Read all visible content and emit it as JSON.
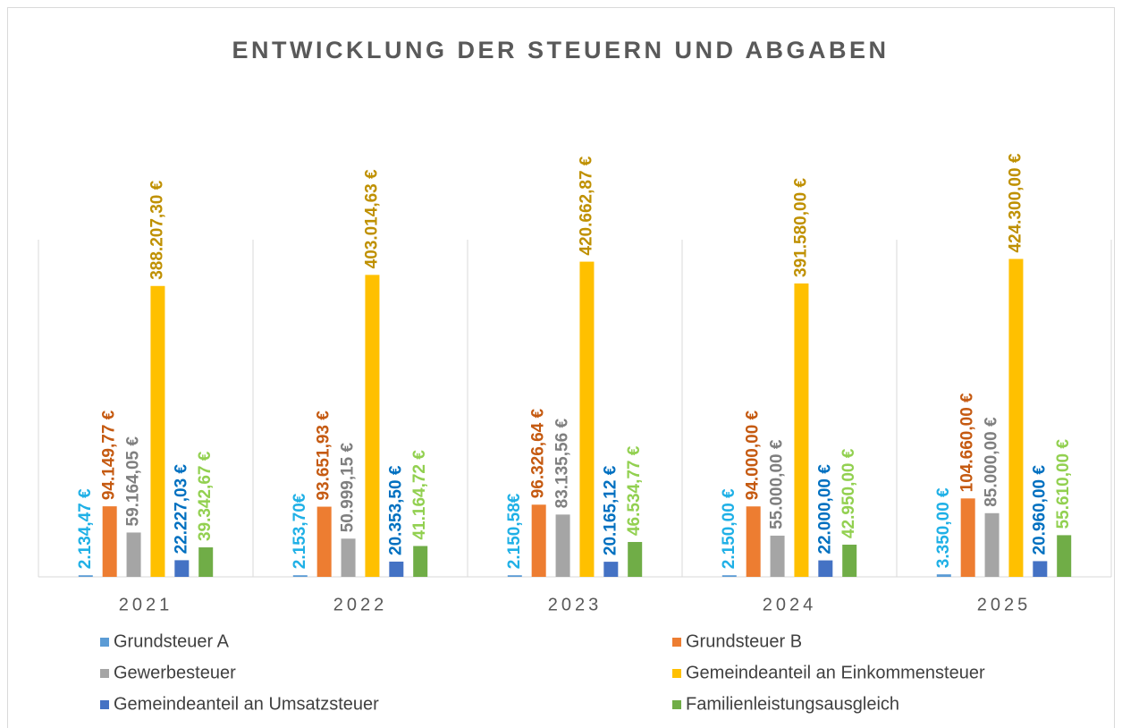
{
  "chart_data": {
    "type": "bar",
    "title": "ENTWICKLUNG DER STEUERN UND ABGABEN",
    "categories": [
      "2021",
      "2022",
      "2023",
      "2024",
      "2025"
    ],
    "ylim": [
      0,
      450000
    ],
    "legend": "bottom",
    "series": [
      {
        "name": "Grundsteuer A",
        "color": "#5b9bd5",
        "label_color": "#1fb0e6",
        "values": [
          2134.47,
          2153.7,
          2150.58,
          2150.0,
          3350.0
        ],
        "value_labels": [
          "2.134,47 €",
          "2.153,70€",
          "2.150,58€",
          "2.150,00 €",
          "3.350,00 €"
        ]
      },
      {
        "name": "Grundsteuer B",
        "color": "#ed7d31",
        "label_color": "#c55a11",
        "values": [
          94149.77,
          93651.93,
          96326.64,
          94000.0,
          104660.0
        ],
        "value_labels": [
          "94.149,77 €",
          "93.651,93 €",
          "96.326,64 €",
          "94.000,00 €",
          "104.660,00 €"
        ]
      },
      {
        "name": "Gewerbesteuer",
        "color": "#a5a5a5",
        "label_color": "#7f7f7f",
        "values": [
          59164.05,
          50999.15,
          83135.56,
          55000.0,
          85000.0
        ],
        "value_labels": [
          "59.164,05 €",
          "50.999,15 €",
          "83.135,56 €",
          "55.000,00 €",
          "85.000,00 €"
        ]
      },
      {
        "name": "Gemeindeanteil an Einkommensteuer",
        "color": "#ffc000",
        "label_color": "#bf9000",
        "values": [
          388207.3,
          403014.63,
          420662.87,
          391580.0,
          424300.0
        ],
        "value_labels": [
          "388.207,30 €",
          "403.014,63 €",
          "420.662,87 €",
          "391.580,00 €",
          "424.300,00 €"
        ]
      },
      {
        "name": "Gemeindeanteil an Umsatzsteuer",
        "color": "#4472c4",
        "label_color": "#0070c0",
        "values": [
          22227.03,
          20353.5,
          20165.12,
          22000.0,
          20960.0
        ],
        "value_labels": [
          "22.227,03 €",
          "20.353,50 €",
          "20.165,12 €",
          "22.000,00 €",
          "20.960,00 €"
        ]
      },
      {
        "name": "Familienleistungsausgleich",
        "color": "#70ad47",
        "label_color": "#92d050",
        "values": [
          39342.67,
          41164.72,
          46534.77,
          42950.0,
          55610.0
        ],
        "value_labels": [
          "39.342,67 €",
          "41.164,72 €",
          "46.534,77 €",
          "42.950,00 €",
          "55.610,00 €"
        ]
      }
    ]
  }
}
